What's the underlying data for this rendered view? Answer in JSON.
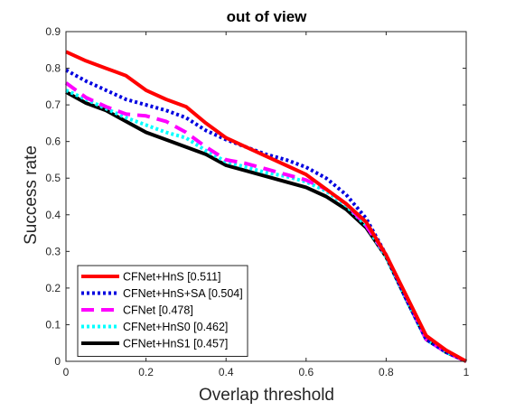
{
  "chart_data": {
    "type": "line",
    "title": "out of view",
    "xlabel": "Overlap threshold",
    "ylabel": "Success rate",
    "xlim": [
      0,
      1
    ],
    "ylim": [
      0,
      0.9
    ],
    "xticks": [
      0,
      0.2,
      0.4,
      0.6,
      0.8,
      1
    ],
    "xtick_labels": [
      "0",
      "0.2",
      "0.4",
      "0.6",
      "0.8",
      "1"
    ],
    "yticks": [
      0,
      0.1,
      0.2,
      0.3,
      0.4,
      0.5,
      0.6,
      0.7,
      0.8,
      0.9
    ],
    "ytick_labels": [
      "0",
      "0.1",
      "0.2",
      "0.3",
      "0.4",
      "0.5",
      "0.6",
      "0.7",
      "0.8",
      "0.9"
    ],
    "grid": false,
    "legend_position": "bottom-left",
    "x": [
      0,
      0.05,
      0.1,
      0.15,
      0.2,
      0.25,
      0.3,
      0.35,
      0.4,
      0.45,
      0.5,
      0.55,
      0.6,
      0.65,
      0.7,
      0.75,
      0.8,
      0.85,
      0.9,
      0.95,
      1.0
    ],
    "series": [
      {
        "name": "CFNet+HnS [0.511]",
        "color": "#ff0000",
        "style": "solid",
        "values": [
          0.845,
          0.82,
          0.8,
          0.78,
          0.74,
          0.715,
          0.695,
          0.65,
          0.61,
          0.585,
          0.56,
          0.535,
          0.51,
          0.47,
          0.43,
          0.38,
          0.29,
          0.18,
          0.07,
          0.03,
          0.0
        ]
      },
      {
        "name": "CFNet+HnS+SA [0.504]",
        "color": "#0000e0",
        "style": "dotted",
        "values": [
          0.795,
          0.765,
          0.74,
          0.715,
          0.7,
          0.685,
          0.665,
          0.63,
          0.605,
          0.585,
          0.565,
          0.55,
          0.53,
          0.5,
          0.455,
          0.39,
          0.29,
          0.17,
          0.06,
          0.025,
          0.0
        ]
      },
      {
        "name": "CFNet [0.478]",
        "color": "#ff00ff",
        "style": "dashed",
        "values": [
          0.76,
          0.72,
          0.695,
          0.675,
          0.67,
          0.655,
          0.625,
          0.585,
          0.55,
          0.54,
          0.525,
          0.51,
          0.495,
          0.47,
          0.43,
          0.37,
          0.29,
          0.175,
          0.06,
          0.025,
          0.0
        ]
      },
      {
        "name": "CFNet+HnS0 [0.462]",
        "color": "#00ffff",
        "style": "dotted",
        "values": [
          0.74,
          0.715,
          0.69,
          0.665,
          0.645,
          0.625,
          0.61,
          0.575,
          0.545,
          0.53,
          0.515,
          0.505,
          0.49,
          0.465,
          0.425,
          0.37,
          0.285,
          0.17,
          0.06,
          0.025,
          0.0
        ]
      },
      {
        "name": "CFNet+HnS1 [0.457]",
        "color": "#000000",
        "style": "solid",
        "values": [
          0.735,
          0.705,
          0.685,
          0.655,
          0.625,
          0.605,
          0.585,
          0.565,
          0.535,
          0.52,
          0.505,
          0.49,
          0.475,
          0.45,
          0.415,
          0.365,
          0.285,
          0.17,
          0.06,
          0.025,
          0.0
        ]
      }
    ]
  }
}
